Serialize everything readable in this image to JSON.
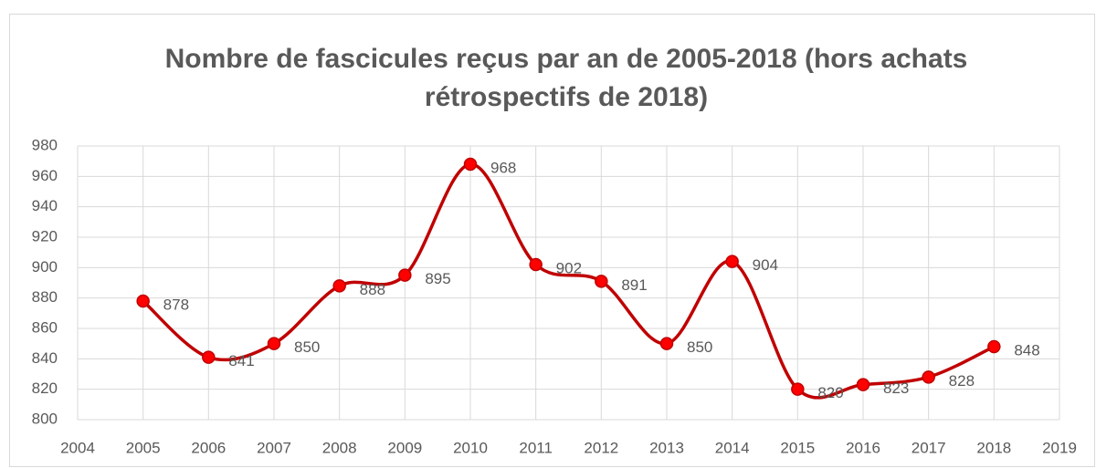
{
  "chart_data": {
    "type": "line",
    "title": [
      "Nombre de fascicules reçus par an de 2005-2018 (hors achats",
      "rétrospectifs de 2018)"
    ],
    "x": [
      2005,
      2006,
      2007,
      2008,
      2009,
      2010,
      2011,
      2012,
      2013,
      2014,
      2015,
      2016,
      2017,
      2018
    ],
    "series": [
      {
        "name": "Fascicules",
        "color": "#c00000",
        "marker_color": "#ff0000",
        "values": [
          878,
          841,
          850,
          888,
          895,
          968,
          902,
          891,
          850,
          904,
          820,
          823,
          828,
          848
        ]
      }
    ],
    "xlim": [
      2004,
      2019
    ],
    "xticks": [
      2004,
      2005,
      2006,
      2007,
      2008,
      2009,
      2010,
      2011,
      2012,
      2013,
      2014,
      2015,
      2016,
      2017,
      2018,
      2019
    ],
    "ylim": [
      800,
      980
    ],
    "yticks": [
      800,
      820,
      840,
      860,
      880,
      900,
      920,
      940,
      960,
      980
    ],
    "grid": true,
    "smooth": true
  }
}
